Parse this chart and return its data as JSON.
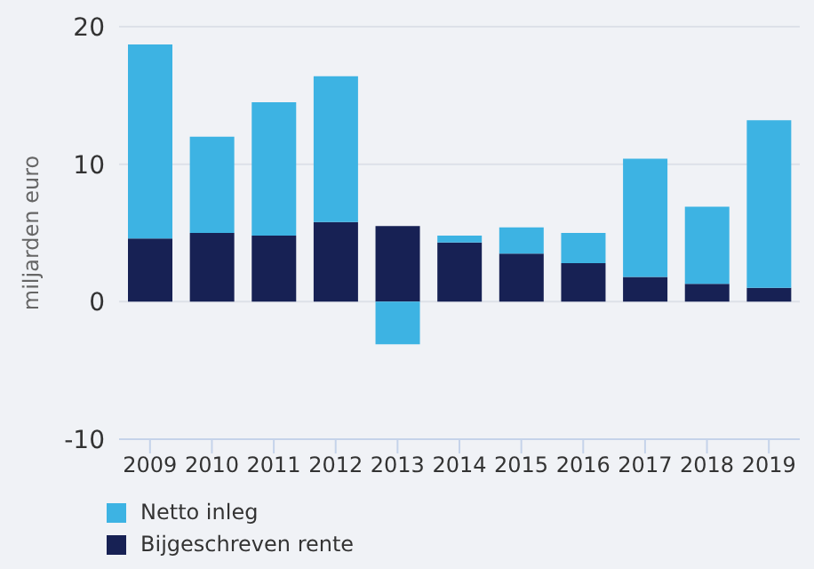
{
  "chart_data": {
    "type": "bar",
    "ylabel": "miljarden euro",
    "stacked": true,
    "categories": [
      "2009",
      "2010",
      "2011",
      "2012",
      "2013",
      "2014",
      "2015",
      "2016",
      "2017",
      "2018",
      "2019"
    ],
    "series": [
      {
        "name": "Bijgeschreven rente",
        "color": "#172154",
        "values": [
          4.6,
          5.0,
          4.8,
          5.8,
          5.5,
          4.3,
          3.5,
          2.8,
          1.8,
          1.3,
          1.0
        ]
      },
      {
        "name": "Netto inleg",
        "color": "#3db3e3",
        "values": [
          14.1,
          7.0,
          9.7,
          10.6,
          -3.1,
          0.5,
          1.9,
          2.2,
          8.6,
          5.6,
          12.2
        ]
      }
    ],
    "ylim": [
      -10,
      20
    ],
    "yticks": [
      -10,
      0,
      10,
      20
    ],
    "grid": "y",
    "legend": "bottom"
  }
}
